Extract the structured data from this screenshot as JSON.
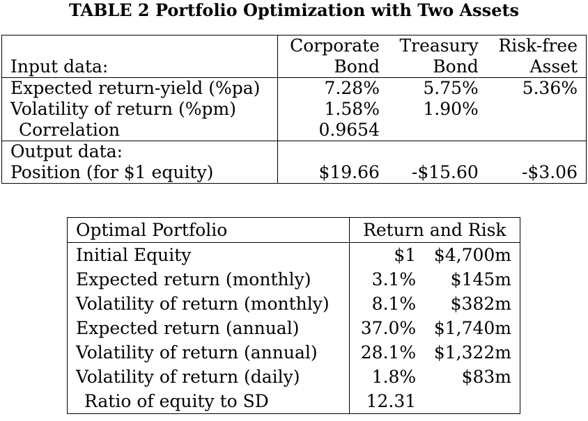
{
  "title": "TABLE 2 Portfolio Optimization with Two Assets",
  "input_table": {
    "header": {
      "label_line2": "Input data:",
      "col1_line1": "Corporate",
      "col1_line2": "Bond",
      "col2_line1": "Treasury",
      "col2_line2": "Bond",
      "col3_line1": "Risk-free",
      "col3_line2": "Asset"
    },
    "rows": [
      {
        "label": "Expected return-yield (%pa)",
        "c1": "7.28%",
        "c2": "5.75%",
        "c3": "5.36%"
      },
      {
        "label": "Volatility of return (%pm)",
        "c1": "1.58%",
        "c2": "1.90%",
        "c3": ""
      },
      {
        "label": "Correlation",
        "c1": "0.9654",
        "c2": "",
        "c3": ""
      }
    ],
    "output_label": "Output data:",
    "position_row": {
      "label": "Position (for $1 equity)",
      "c1": "$19.66",
      "c2": "-$15.60",
      "c3": "-$3.06"
    }
  },
  "portfolio_table": {
    "header_left": "Optimal Portfolio",
    "header_right": "Return and Risk",
    "rows": [
      {
        "label": "Initial Equity",
        "v1": "$1",
        "v2": "$4,700m"
      },
      {
        "label": "Expected return (monthly)",
        "v1": "3.1%",
        "v2": "$145m"
      },
      {
        "label": "Volatility of return (monthly)",
        "v1": "8.1%",
        "v2": "$382m"
      },
      {
        "label": "Expected return (annual)",
        "v1": "37.0%",
        "v2": "$1,740m"
      },
      {
        "label": "Volatility of return (annual)",
        "v1": "28.1%",
        "v2": "$1,322m"
      },
      {
        "label": "Volatility of return (daily)",
        "v1": "1.8%",
        "v2": "$83m"
      },
      {
        "label": "Ratio of equity to SD",
        "v1": "12.31",
        "v2": ""
      }
    ]
  }
}
